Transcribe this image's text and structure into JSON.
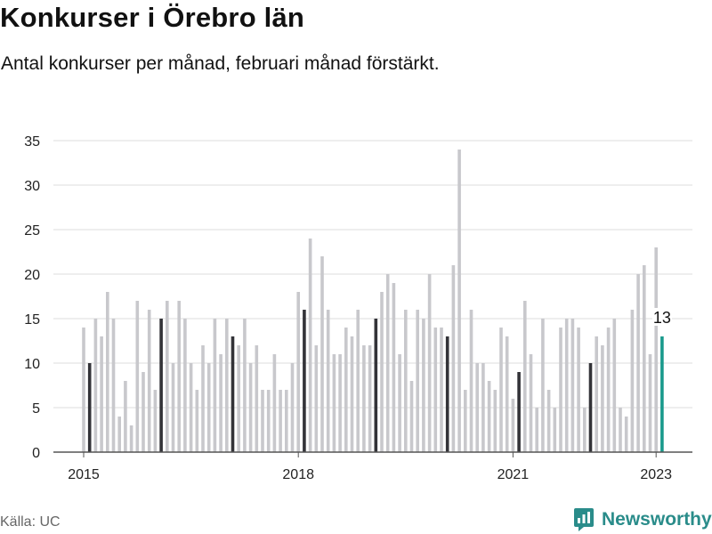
{
  "header": {
    "title": "Konkurser i Örebro län",
    "subtitle": "Antal konkurser per månad, februari månad förstärkt."
  },
  "footer": {
    "source": "Källa: UC",
    "brand": "Newsworthy"
  },
  "colors": {
    "bar": "#c8c8cc",
    "highlight": "#333338",
    "latest": "#1a9a8c",
    "grid": "#dcdcdc",
    "axis": "#555555"
  },
  "chart_data": {
    "type": "bar",
    "title": "Konkurser i Örebro län",
    "subtitle": "Antal konkurser per månad, februari månad förstärkt.",
    "xlabel": "",
    "ylabel": "",
    "ylim": [
      0,
      35
    ],
    "yticks": [
      0,
      5,
      10,
      15,
      20,
      25,
      30,
      35
    ],
    "grid": true,
    "x_tick_labels": [
      {
        "label": "2015",
        "index": 0
      },
      {
        "label": "2018",
        "index": 36
      },
      {
        "label": "2021",
        "index": 72
      },
      {
        "label": "2023",
        "index": 96
      }
    ],
    "start": "2015-01",
    "end": "2023-02",
    "highlight": "February of each year",
    "values": [
      14,
      10,
      15,
      13,
      18,
      15,
      4,
      8,
      3,
      17,
      9,
      16,
      7,
      15,
      17,
      10,
      17,
      15,
      10,
      7,
      12,
      10,
      15,
      11,
      15,
      13,
      12,
      15,
      10,
      12,
      7,
      7,
      11,
      7,
      7,
      10,
      18,
      16,
      24,
      12,
      22,
      16,
      11,
      11,
      14,
      13,
      16,
      12,
      12,
      15,
      18,
      20,
      19,
      11,
      16,
      8,
      16,
      15,
      20,
      14,
      14,
      13,
      21,
      34,
      7,
      16,
      10,
      10,
      8,
      7,
      14,
      13,
      6,
      9,
      17,
      11,
      5,
      15,
      7,
      5,
      14,
      15,
      15,
      14,
      5,
      10,
      13,
      12,
      14,
      15,
      5,
      4,
      16,
      20,
      21,
      11,
      23,
      13
    ],
    "annotations": [
      {
        "text": "13",
        "index": 97,
        "value": 13
      }
    ]
  }
}
